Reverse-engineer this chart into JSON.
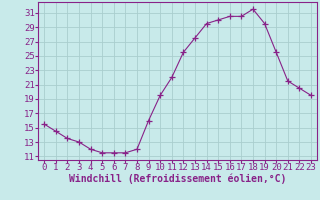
{
  "x": [
    0,
    1,
    2,
    3,
    4,
    5,
    6,
    7,
    8,
    9,
    10,
    11,
    12,
    13,
    14,
    15,
    16,
    17,
    18,
    19,
    20,
    21,
    22,
    23
  ],
  "y": [
    15.5,
    14.5,
    13.5,
    13.0,
    12.0,
    11.5,
    11.5,
    11.5,
    12.0,
    16.0,
    19.5,
    22.0,
    25.5,
    27.5,
    29.5,
    30.0,
    30.5,
    30.5,
    31.5,
    29.5,
    25.5,
    21.5,
    20.5,
    19.5
  ],
  "line_color": "#882288",
  "marker": "+",
  "marker_size": 4,
  "xlabel": "Windchill (Refroidissement éolien,°C)",
  "ylabel": "",
  "title": "",
  "xlim": [
    -0.5,
    23.5
  ],
  "ylim": [
    10.5,
    32.5
  ],
  "yticks": [
    11,
    13,
    15,
    17,
    19,
    21,
    23,
    25,
    27,
    29,
    31
  ],
  "xticks": [
    0,
    1,
    2,
    3,
    4,
    5,
    6,
    7,
    8,
    9,
    10,
    11,
    12,
    13,
    14,
    15,
    16,
    17,
    18,
    19,
    20,
    21,
    22,
    23
  ],
  "grid_color": "#aacece",
  "bg_color": "#c8eaea",
  "axis_color": "#882288",
  "tick_color": "#882288",
  "label_color": "#882288",
  "label_fontsize": 6.5,
  "xlabel_fontsize": 7
}
